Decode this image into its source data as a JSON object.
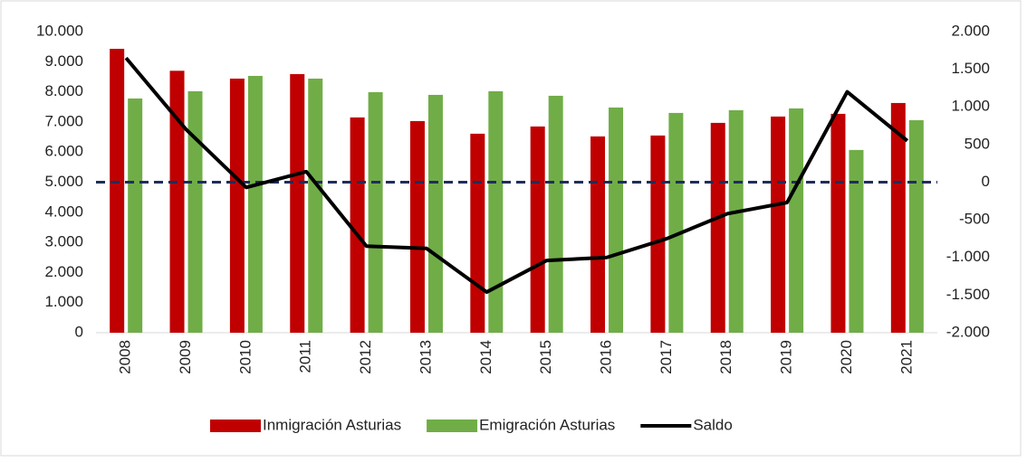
{
  "chart_data": {
    "type": "bar_line",
    "categories": [
      "2008",
      "2009",
      "2010",
      "2011",
      "2012",
      "2013",
      "2014",
      "2015",
      "2016",
      "2017",
      "2018",
      "2019",
      "2020",
      "2021"
    ],
    "series": [
      {
        "name": "Inmigración Asturias",
        "color": "#c00000",
        "type": "bar",
        "values": [
          9430,
          8700,
          8440,
          8590,
          7150,
          7030,
          6610,
          6850,
          6520,
          6550,
          6970,
          7180,
          7270,
          7630
        ]
      },
      {
        "name": "Emigración Asturias",
        "color": "#70ad47",
        "type": "bar",
        "values": [
          7780,
          8020,
          8530,
          8440,
          7990,
          7900,
          8020,
          7870,
          7480,
          7300,
          7390,
          7450,
          6070,
          7060
        ]
      },
      {
        "name": "Saldo",
        "color": "#000000",
        "type": "line",
        "axis": "y2",
        "values": [
          1650,
          700,
          -70,
          140,
          -850,
          -880,
          -1460,
          -1040,
          -1000,
          -750,
          -420,
          -270,
          1200,
          550
        ]
      }
    ],
    "ylim": [
      0,
      10000
    ],
    "yticks": [
      0,
      {
        "value": 1000,
        "label": "1.000"
      },
      {
        "value": 2000,
        "label": "2.000"
      },
      {
        "value": 3000,
        "label": "3.000"
      },
      {
        "value": 4000,
        "label": "4.000"
      },
      {
        "value": 5000,
        "label": "5.000"
      },
      {
        "value": 6000,
        "label": "6.000"
      },
      {
        "value": 7000,
        "label": "7.000"
      },
      {
        "value": 8000,
        "label": "8.000"
      },
      {
        "value": 9000,
        "label": "9.000"
      },
      {
        "value": 10000,
        "label": "10.000"
      }
    ],
    "y2lim": [
      -2000,
      2000
    ],
    "y2ticks": [
      {
        "value": -2000,
        "label": "-2.000"
      },
      {
        "value": -1500,
        "label": "-1.500"
      },
      {
        "value": -1000,
        "label": "-1.000"
      },
      -500,
      0,
      500,
      {
        "value": 1000,
        "label": "1.000"
      },
      {
        "value": 1500,
        "label": "1.500"
      },
      {
        "value": 2000,
        "label": "2.000"
      }
    ],
    "reference_line": {
      "axis": "y2",
      "value": 0,
      "color": "#1f2d5c",
      "dashed": true
    },
    "legend": "bottom"
  }
}
